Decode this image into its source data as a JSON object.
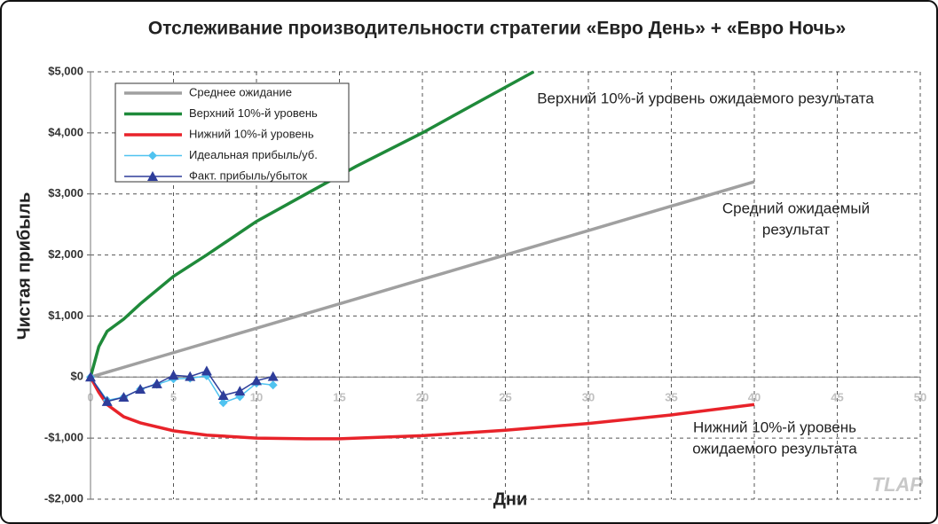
{
  "chart_data": {
    "type": "line",
    "title": "Отслеживание производительности стратегии «Евро День» + «Евро Ночь»",
    "xlabel": "Дни",
    "ylabel": "Чистая прибыль",
    "xlim": [
      0,
      50
    ],
    "xticks": [
      0,
      5,
      10,
      15,
      20,
      25,
      30,
      35,
      40,
      45,
      50
    ],
    "ylim": [
      -2000,
      5000
    ],
    "yticks": [
      {
        "value": -2000,
        "label": "-$2,000"
      },
      {
        "value": -1000,
        "label": "-$1,000"
      },
      {
        "value": 0,
        "label": "$0"
      },
      {
        "value": 1000,
        "label": "$1,000"
      },
      {
        "value": 2000,
        "label": "$2,000"
      },
      {
        "value": 3000,
        "label": "$3,000"
      },
      {
        "value": 4000,
        "label": "$4,000"
      },
      {
        "value": 5000,
        "label": "$5,000"
      }
    ],
    "grid": true,
    "legend": "upper left",
    "series": [
      {
        "name": "Среднее ожидание",
        "color": "#a0a0a0",
        "marker": "none",
        "x": [
          0,
          5,
          10,
          15,
          20,
          25,
          30,
          35,
          40
        ],
        "values": [
          0,
          400,
          800,
          1200,
          1600,
          2000,
          2400,
          2800,
          3200
        ]
      },
      {
        "name": "Верхний 10%-й уровень",
        "color": "#1f8a3a",
        "marker": "none",
        "x": [
          0,
          0.5,
          1,
          2,
          3,
          5,
          7,
          10,
          13,
          16,
          20,
          23,
          26.7
        ],
        "values": [
          0,
          500,
          750,
          950,
          1200,
          1650,
          2000,
          2550,
          3000,
          3450,
          4000,
          4450,
          5000
        ]
      },
      {
        "name": "Нижний 10%-й уровень",
        "color": "#e8232a",
        "marker": "none",
        "x": [
          0,
          0.5,
          1,
          2,
          3,
          5,
          7,
          10,
          13,
          15,
          20,
          25,
          30,
          35,
          40
        ],
        "values": [
          0,
          -250,
          -450,
          -650,
          -750,
          -880,
          -950,
          -1000,
          -1010,
          -1010,
          -960,
          -870,
          -760,
          -620,
          -450
        ]
      },
      {
        "name": "Идеальная прибыль/уб.",
        "color": "#4fc3f0",
        "marker": "diamond",
        "x": [
          0,
          1,
          2,
          3,
          4,
          5,
          6,
          7,
          8,
          9,
          10,
          11
        ],
        "values": [
          0,
          -380,
          -330,
          -200,
          -120,
          -30,
          -20,
          20,
          -420,
          -320,
          -100,
          -130
        ]
      },
      {
        "name": "Факт. прибыль/убыток",
        "color": "#2e3d9a",
        "marker": "triangle",
        "x": [
          0,
          1,
          2,
          3,
          4,
          5,
          6,
          7,
          8,
          9,
          10,
          11
        ],
        "values": [
          0,
          -400,
          -330,
          -200,
          -110,
          30,
          10,
          100,
          -300,
          -230,
          -60,
          10
        ]
      }
    ],
    "annotations": [
      [
        "Верхний 10%-й уровень ожидаемого результата"
      ],
      [
        "Средний ожидаемый",
        "результат"
      ],
      [
        "Нижний 10%-й уровень",
        "ожидаемого результата"
      ]
    ],
    "watermark": "TLAP"
  }
}
